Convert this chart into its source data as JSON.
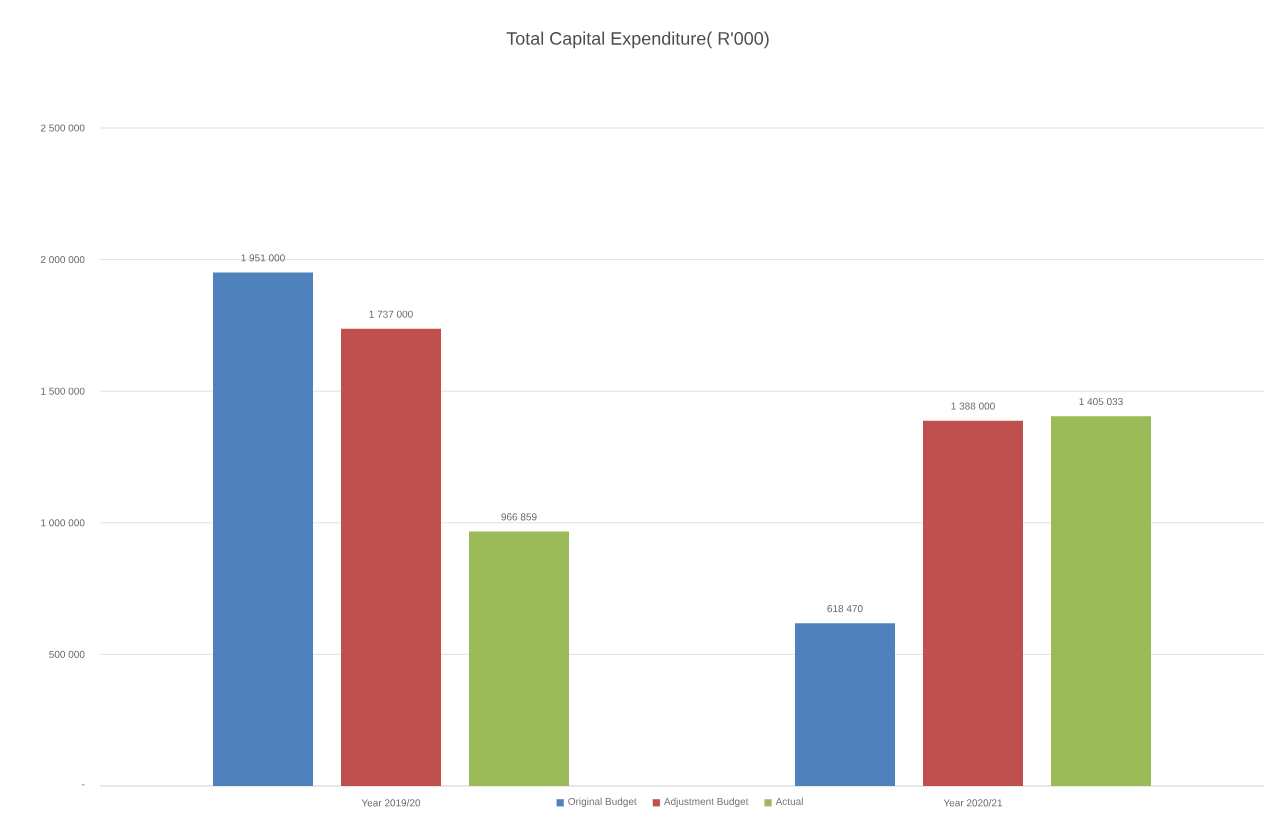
{
  "chart_data": {
    "type": "bar",
    "title": "Total Capital Expenditure( R'000)",
    "categories": [
      "Year  2019/20",
      "Year  2020/21"
    ],
    "series": [
      {
        "name": "Original Budget",
        "color": "#4f81bd",
        "values": [
          1951000,
          618470
        ],
        "value_labels": [
          "1 951 000",
          "618 470"
        ]
      },
      {
        "name": "Adjustment Budget",
        "color": "#c0504d",
        "values": [
          1737000,
          1388000
        ],
        "value_labels": [
          "1 737 000",
          "1 388 000"
        ]
      },
      {
        "name": "Actual",
        "color": "#9bbb59",
        "values": [
          966859,
          1405033
        ],
        "value_labels": [
          "966 859",
          "1 405 033"
        ]
      }
    ],
    "ylim": [
      0,
      2500000
    ],
    "yticks": [
      {
        "value": 0,
        "label": "-"
      },
      {
        "value": 500000,
        "label": "500 000"
      },
      {
        "value": 1000000,
        "label": "1 000 000"
      },
      {
        "value": 1500000,
        "label": "1 500 000"
      },
      {
        "value": 2000000,
        "label": "2 000 000"
      },
      {
        "value": 2500000,
        "label": "2 500 000"
      }
    ],
    "grid": "y",
    "legend": "bottom"
  }
}
